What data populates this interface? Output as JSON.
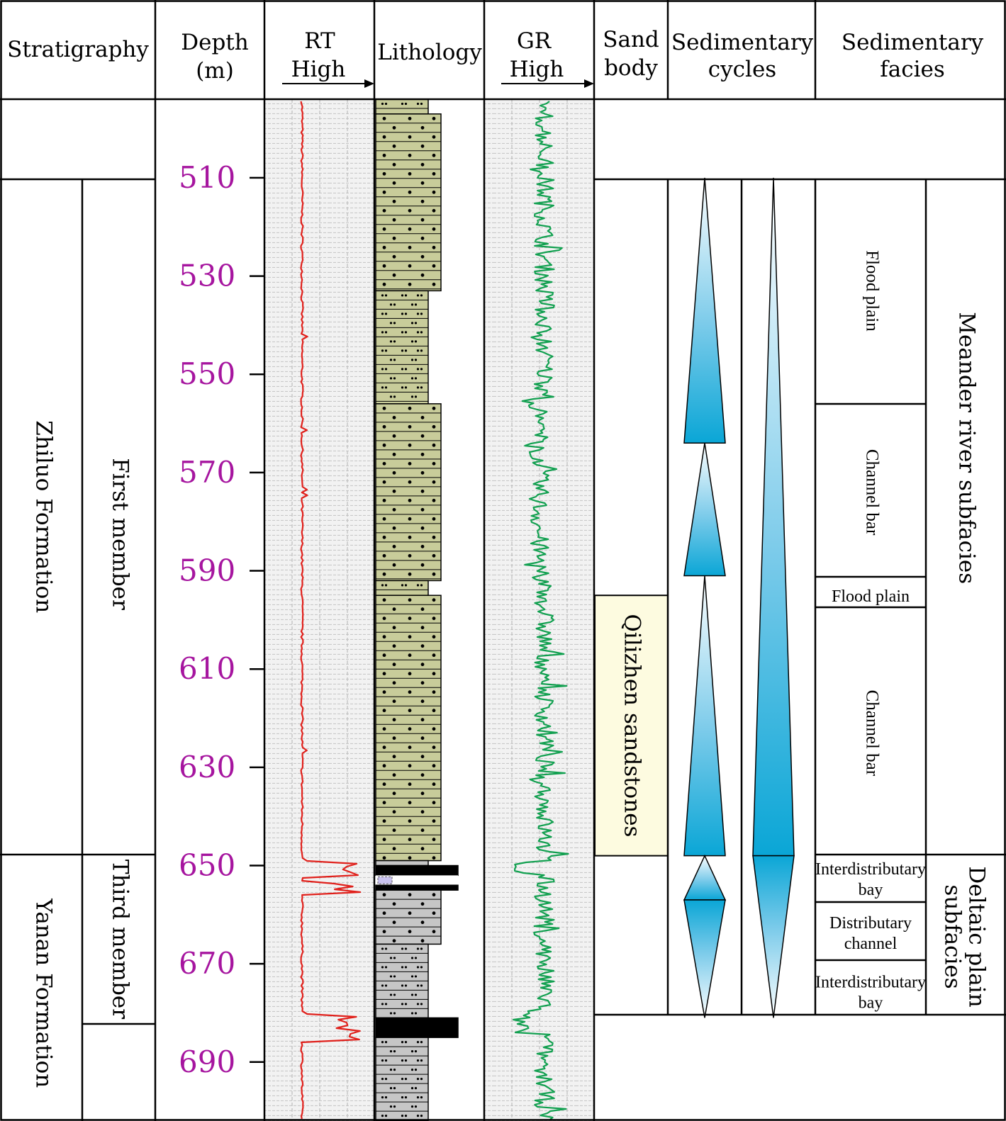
{
  "headers": {
    "stratigraphy": "Stratigraphy",
    "depth_line1": "Depth",
    "depth_line2": "(m)",
    "rt_line1": "RT",
    "rt_line2": "High",
    "lithology": "Lithology",
    "gr_line1": "GR",
    "gr_line2": "High",
    "sand_line1": "Sand",
    "sand_line2": "body",
    "cycles_line1": "Sedimentary",
    "cycles_line2": "cycles",
    "facies_line1": "Sedimentary",
    "facies_line2": "facies"
  },
  "depth_scale": {
    "start_m": 494,
    "end_m": 702,
    "labels": [
      "510",
      "530",
      "550",
      "570",
      "590",
      "610",
      "630",
      "650",
      "670",
      "690"
    ]
  },
  "formations": [
    {
      "name": "Zhiluo Formation",
      "top_m": 510,
      "base_m": 648
    },
    {
      "name": "Yanan Formation",
      "top_m": 648,
      "base_m": 702
    }
  ],
  "members": [
    {
      "name": "First member",
      "top_m": 510,
      "base_m": 648
    },
    {
      "name": "Third member",
      "top_m": 648,
      "base_m": 681
    }
  ],
  "sand_body": {
    "name": "Qilizhen sandstones",
    "top_m": 595,
    "base_m": 648,
    "color": "#fdfbe0"
  },
  "lithology": {
    "sand_color": "#c8cc9a",
    "grey_color": "#c6c6c6",
    "coal_color": "#000000",
    "mud_color": "#c9c2ee",
    "layers": [
      {
        "type": "siltstone",
        "top_m": 494,
        "base_m": 497
      },
      {
        "type": "sandstone",
        "top_m": 497,
        "base_m": 533
      },
      {
        "type": "siltstone",
        "top_m": 533,
        "base_m": 556
      },
      {
        "type": "sandstone",
        "top_m": 556,
        "base_m": 592
      },
      {
        "type": "siltstone",
        "top_m": 592,
        "base_m": 595
      },
      {
        "type": "sandstone",
        "top_m": 595,
        "base_m": 649
      },
      {
        "type": "grey-siltstone",
        "top_m": 649,
        "base_m": 650
      },
      {
        "type": "coal",
        "top_m": 650,
        "base_m": 652
      },
      {
        "type": "mudstone",
        "top_m": 652,
        "base_m": 654
      },
      {
        "type": "coal",
        "top_m": 654,
        "base_m": 655
      },
      {
        "type": "grey-sandstone",
        "top_m": 655,
        "base_m": 666
      },
      {
        "type": "grey-siltstone",
        "top_m": 666,
        "base_m": 681
      },
      {
        "type": "coal",
        "top_m": 681,
        "base_m": 685
      },
      {
        "type": "grey-siltstone",
        "top_m": 685,
        "base_m": 702
      }
    ]
  },
  "logs": {
    "rt_color": "#e0201b",
    "gr_color": "#12a050"
  },
  "cycles": {
    "fill_color": "#0aa6d6",
    "short_term": [
      {
        "apex_m": 510,
        "base_m": 564,
        "direction": "down-coarsening"
      },
      {
        "apex_m": 564,
        "base_m": 591,
        "direction": "down-coarsening"
      },
      {
        "apex_m": 591,
        "base_m": 648,
        "direction": "down-coarsening"
      },
      {
        "apex_m": 648,
        "base_m": 657,
        "direction": "up-narrowing"
      },
      {
        "apex_m": 681,
        "base_m": 657,
        "direction": "down-narrowing"
      }
    ],
    "long_term": [
      {
        "apex_m": 510,
        "base_m": 648,
        "direction": "down-coarsening"
      },
      {
        "apex_m": 681,
        "base_m": 648,
        "direction": "down-narrowing"
      }
    ]
  },
  "facies": [
    {
      "name": "Flood plain",
      "top_m": 510,
      "base_m": 556,
      "vertical": true
    },
    {
      "name": "Channel bar",
      "top_m": 556,
      "base_m": 592,
      "vertical": true
    },
    {
      "name": "Flood plain",
      "top_m": 592,
      "base_m": 598,
      "vertical": false
    },
    {
      "name": "Channel bar",
      "top_m": 598,
      "base_m": 648,
      "vertical": true
    },
    {
      "name": "Interdistributary bay",
      "top_m": 648,
      "base_m": 657,
      "vertical": false,
      "line1": "Interdistributary",
      "line2": "bay"
    },
    {
      "name": "Distributary channel",
      "top_m": 657,
      "base_m": 670,
      "vertical": false,
      "line1": "Distributary",
      "line2": "channel"
    },
    {
      "name": "Interdistributary bay",
      "top_m": 670,
      "base_m": 681,
      "vertical": false,
      "line1": "Interdistributary",
      "line2": "bay"
    }
  ],
  "subfacies": [
    {
      "name": "Meander river subfacies",
      "top_m": 510,
      "base_m": 648
    },
    {
      "name": "Deltaic plain subfacies",
      "top_m": 648,
      "base_m": 681,
      "line1": "Deltaic plain",
      "line2": "subfacies"
    }
  ]
}
